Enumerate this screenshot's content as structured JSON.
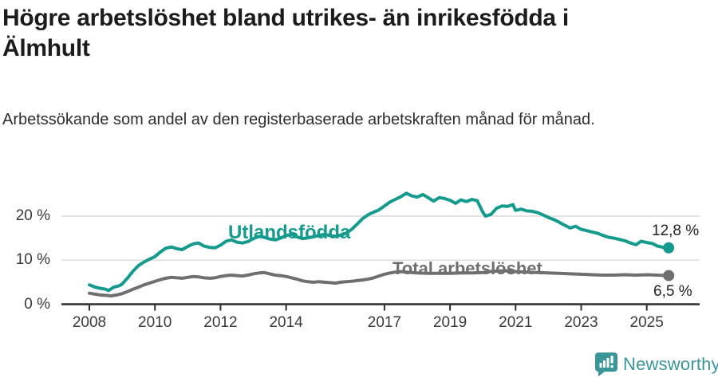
{
  "header": {
    "title": "Högre arbetslöshet bland utrikes- än inrikesfödda i Älmhult",
    "subtitle": "Arbetssökande som andel av den registerbaserade arbetskraften månad för månad."
  },
  "footer": {
    "brand": "Newsworthy",
    "brand_color": "#3a9598"
  },
  "chart_data": {
    "type": "line",
    "unit": "%",
    "grid": "horizontal-only",
    "legend_position": "inline-labels",
    "xlim": [
      2007.15,
      2026.6
    ],
    "ylim": [
      0,
      27
    ],
    "x_ticks": [
      2008,
      2010,
      2012,
      2014,
      2017,
      2019,
      2021,
      2023,
      2025
    ],
    "y_ticks": [
      {
        "value": 0,
        "label": "0 %"
      },
      {
        "value": 10,
        "label": "10 %"
      },
      {
        "value": 20,
        "label": "20 %"
      }
    ],
    "axis_color": "#2f2f2f",
    "grid_color": "#dcdcdc",
    "series": [
      {
        "name": "Utlandsfödda",
        "color": "#149b8d",
        "end_label": "12,8 %",
        "end_value": 12.8,
        "points": [
          [
            2008.0,
            4.4
          ],
          [
            2008.17,
            3.9
          ],
          [
            2008.33,
            3.6
          ],
          [
            2008.5,
            3.4
          ],
          [
            2008.58,
            3.1
          ],
          [
            2008.75,
            3.9
          ],
          [
            2008.92,
            4.2
          ],
          [
            2009.0,
            4.6
          ],
          [
            2009.17,
            6.0
          ],
          [
            2009.33,
            7.5
          ],
          [
            2009.5,
            8.8
          ],
          [
            2009.67,
            9.6
          ],
          [
            2009.83,
            10.2
          ],
          [
            2010.0,
            10.8
          ],
          [
            2010.17,
            11.9
          ],
          [
            2010.33,
            12.7
          ],
          [
            2010.5,
            13.0
          ],
          [
            2010.67,
            12.6
          ],
          [
            2010.83,
            12.4
          ],
          [
            2011.0,
            13.1
          ],
          [
            2011.17,
            13.7
          ],
          [
            2011.33,
            13.9
          ],
          [
            2011.5,
            13.2
          ],
          [
            2011.67,
            12.9
          ],
          [
            2011.83,
            12.8
          ],
          [
            2012.0,
            13.4
          ],
          [
            2012.17,
            14.3
          ],
          [
            2012.33,
            14.6
          ],
          [
            2012.5,
            14.1
          ],
          [
            2012.67,
            13.9
          ],
          [
            2012.83,
            14.2
          ],
          [
            2013.0,
            14.9
          ],
          [
            2013.17,
            15.4
          ],
          [
            2013.33,
            15.2
          ],
          [
            2013.5,
            14.8
          ],
          [
            2013.67,
            14.6
          ],
          [
            2013.83,
            15.0
          ],
          [
            2014.0,
            15.6
          ],
          [
            2014.17,
            15.9
          ],
          [
            2014.33,
            15.3
          ],
          [
            2014.5,
            14.9
          ],
          [
            2014.67,
            15.1
          ],
          [
            2014.83,
            15.3
          ],
          [
            2015.0,
            15.6
          ],
          [
            2015.17,
            15.9
          ],
          [
            2015.33,
            15.6
          ],
          [
            2015.5,
            15.4
          ],
          [
            2015.67,
            15.7
          ],
          [
            2015.83,
            16.1
          ],
          [
            2016.0,
            17.0
          ],
          [
            2016.17,
            18.2
          ],
          [
            2016.33,
            19.4
          ],
          [
            2016.5,
            20.3
          ],
          [
            2016.67,
            20.9
          ],
          [
            2016.83,
            21.4
          ],
          [
            2017.0,
            22.3
          ],
          [
            2017.17,
            23.2
          ],
          [
            2017.33,
            23.8
          ],
          [
            2017.5,
            24.4
          ],
          [
            2017.67,
            25.2
          ],
          [
            2017.83,
            24.6
          ],
          [
            2018.0,
            24.3
          ],
          [
            2018.17,
            24.9
          ],
          [
            2018.33,
            24.2
          ],
          [
            2018.5,
            23.4
          ],
          [
            2018.67,
            24.2
          ],
          [
            2018.83,
            24.0
          ],
          [
            2019.0,
            23.6
          ],
          [
            2019.17,
            22.9
          ],
          [
            2019.33,
            23.7
          ],
          [
            2019.5,
            23.3
          ],
          [
            2019.67,
            23.8
          ],
          [
            2019.83,
            23.5
          ],
          [
            2020.0,
            20.9
          ],
          [
            2020.08,
            20.0
          ],
          [
            2020.25,
            20.4
          ],
          [
            2020.42,
            21.8
          ],
          [
            2020.58,
            22.3
          ],
          [
            2020.75,
            22.2
          ],
          [
            2020.92,
            22.6
          ],
          [
            2021.0,
            21.3
          ],
          [
            2021.17,
            21.6
          ],
          [
            2021.33,
            21.2
          ],
          [
            2021.5,
            21.1
          ],
          [
            2021.67,
            20.8
          ],
          [
            2021.83,
            20.3
          ],
          [
            2022.0,
            19.7
          ],
          [
            2022.17,
            19.2
          ],
          [
            2022.33,
            18.6
          ],
          [
            2022.5,
            17.9
          ],
          [
            2022.67,
            17.3
          ],
          [
            2022.83,
            17.7
          ],
          [
            2023.0,
            17.0
          ],
          [
            2023.17,
            16.7
          ],
          [
            2023.33,
            16.4
          ],
          [
            2023.5,
            16.1
          ],
          [
            2023.67,
            15.6
          ],
          [
            2023.83,
            15.2
          ],
          [
            2024.0,
            15.0
          ],
          [
            2024.17,
            14.7
          ],
          [
            2024.33,
            14.4
          ],
          [
            2024.5,
            13.9
          ],
          [
            2024.67,
            13.5
          ],
          [
            2024.83,
            14.3
          ],
          [
            2025.0,
            14.0
          ],
          [
            2025.17,
            13.8
          ],
          [
            2025.33,
            13.2
          ],
          [
            2025.5,
            12.9
          ],
          [
            2025.67,
            12.8
          ]
        ]
      },
      {
        "name": "Total arbetslöshet",
        "color": "#6f6f6f",
        "end_label": "6,5 %",
        "end_value": 6.5,
        "points": [
          [
            2008.0,
            2.5
          ],
          [
            2008.17,
            2.3
          ],
          [
            2008.33,
            2.1
          ],
          [
            2008.5,
            2.0
          ],
          [
            2008.67,
            1.9
          ],
          [
            2008.83,
            2.1
          ],
          [
            2009.0,
            2.4
          ],
          [
            2009.17,
            2.9
          ],
          [
            2009.33,
            3.4
          ],
          [
            2009.5,
            3.9
          ],
          [
            2009.67,
            4.4
          ],
          [
            2009.83,
            4.8
          ],
          [
            2010.0,
            5.2
          ],
          [
            2010.17,
            5.6
          ],
          [
            2010.33,
            5.9
          ],
          [
            2010.5,
            6.1
          ],
          [
            2010.67,
            6.0
          ],
          [
            2010.83,
            5.9
          ],
          [
            2011.0,
            6.1
          ],
          [
            2011.17,
            6.3
          ],
          [
            2011.33,
            6.2
          ],
          [
            2011.5,
            6.0
          ],
          [
            2011.67,
            5.9
          ],
          [
            2011.83,
            6.0
          ],
          [
            2012.0,
            6.3
          ],
          [
            2012.17,
            6.5
          ],
          [
            2012.33,
            6.6
          ],
          [
            2012.5,
            6.5
          ],
          [
            2012.67,
            6.4
          ],
          [
            2012.83,
            6.6
          ],
          [
            2013.0,
            6.9
          ],
          [
            2013.17,
            7.1
          ],
          [
            2013.33,
            7.2
          ],
          [
            2013.5,
            6.9
          ],
          [
            2013.67,
            6.6
          ],
          [
            2013.83,
            6.5
          ],
          [
            2014.0,
            6.3
          ],
          [
            2014.17,
            6.0
          ],
          [
            2014.33,
            5.7
          ],
          [
            2014.5,
            5.3
          ],
          [
            2014.67,
            5.1
          ],
          [
            2014.83,
            5.0
          ],
          [
            2015.0,
            5.1
          ],
          [
            2015.17,
            5.0
          ],
          [
            2015.33,
            4.9
          ],
          [
            2015.5,
            4.8
          ],
          [
            2015.67,
            5.0
          ],
          [
            2015.83,
            5.1
          ],
          [
            2016.0,
            5.2
          ],
          [
            2016.17,
            5.4
          ],
          [
            2016.33,
            5.5
          ],
          [
            2016.5,
            5.7
          ],
          [
            2016.67,
            6.0
          ],
          [
            2016.83,
            6.4
          ],
          [
            2017.0,
            6.8
          ],
          [
            2017.17,
            7.1
          ],
          [
            2017.33,
            7.3
          ],
          [
            2017.5,
            7.4
          ],
          [
            2017.67,
            7.3
          ],
          [
            2017.83,
            7.2
          ],
          [
            2018.0,
            7.1
          ],
          [
            2018.33,
            7.0
          ],
          [
            2018.67,
            7.0
          ],
          [
            2019.0,
            7.0
          ],
          [
            2019.33,
            7.1
          ],
          [
            2019.67,
            7.1
          ],
          [
            2020.0,
            7.2
          ],
          [
            2020.33,
            7.5
          ],
          [
            2020.67,
            7.6
          ],
          [
            2021.0,
            7.4
          ],
          [
            2021.33,
            7.3
          ],
          [
            2021.67,
            7.2
          ],
          [
            2022.0,
            7.1
          ],
          [
            2022.33,
            7.0
          ],
          [
            2022.67,
            6.9
          ],
          [
            2023.0,
            6.8
          ],
          [
            2023.33,
            6.7
          ],
          [
            2023.67,
            6.6
          ],
          [
            2024.0,
            6.6
          ],
          [
            2024.33,
            6.7
          ],
          [
            2024.67,
            6.6
          ],
          [
            2025.0,
            6.7
          ],
          [
            2025.33,
            6.6
          ],
          [
            2025.67,
            6.5
          ]
        ]
      }
    ]
  }
}
